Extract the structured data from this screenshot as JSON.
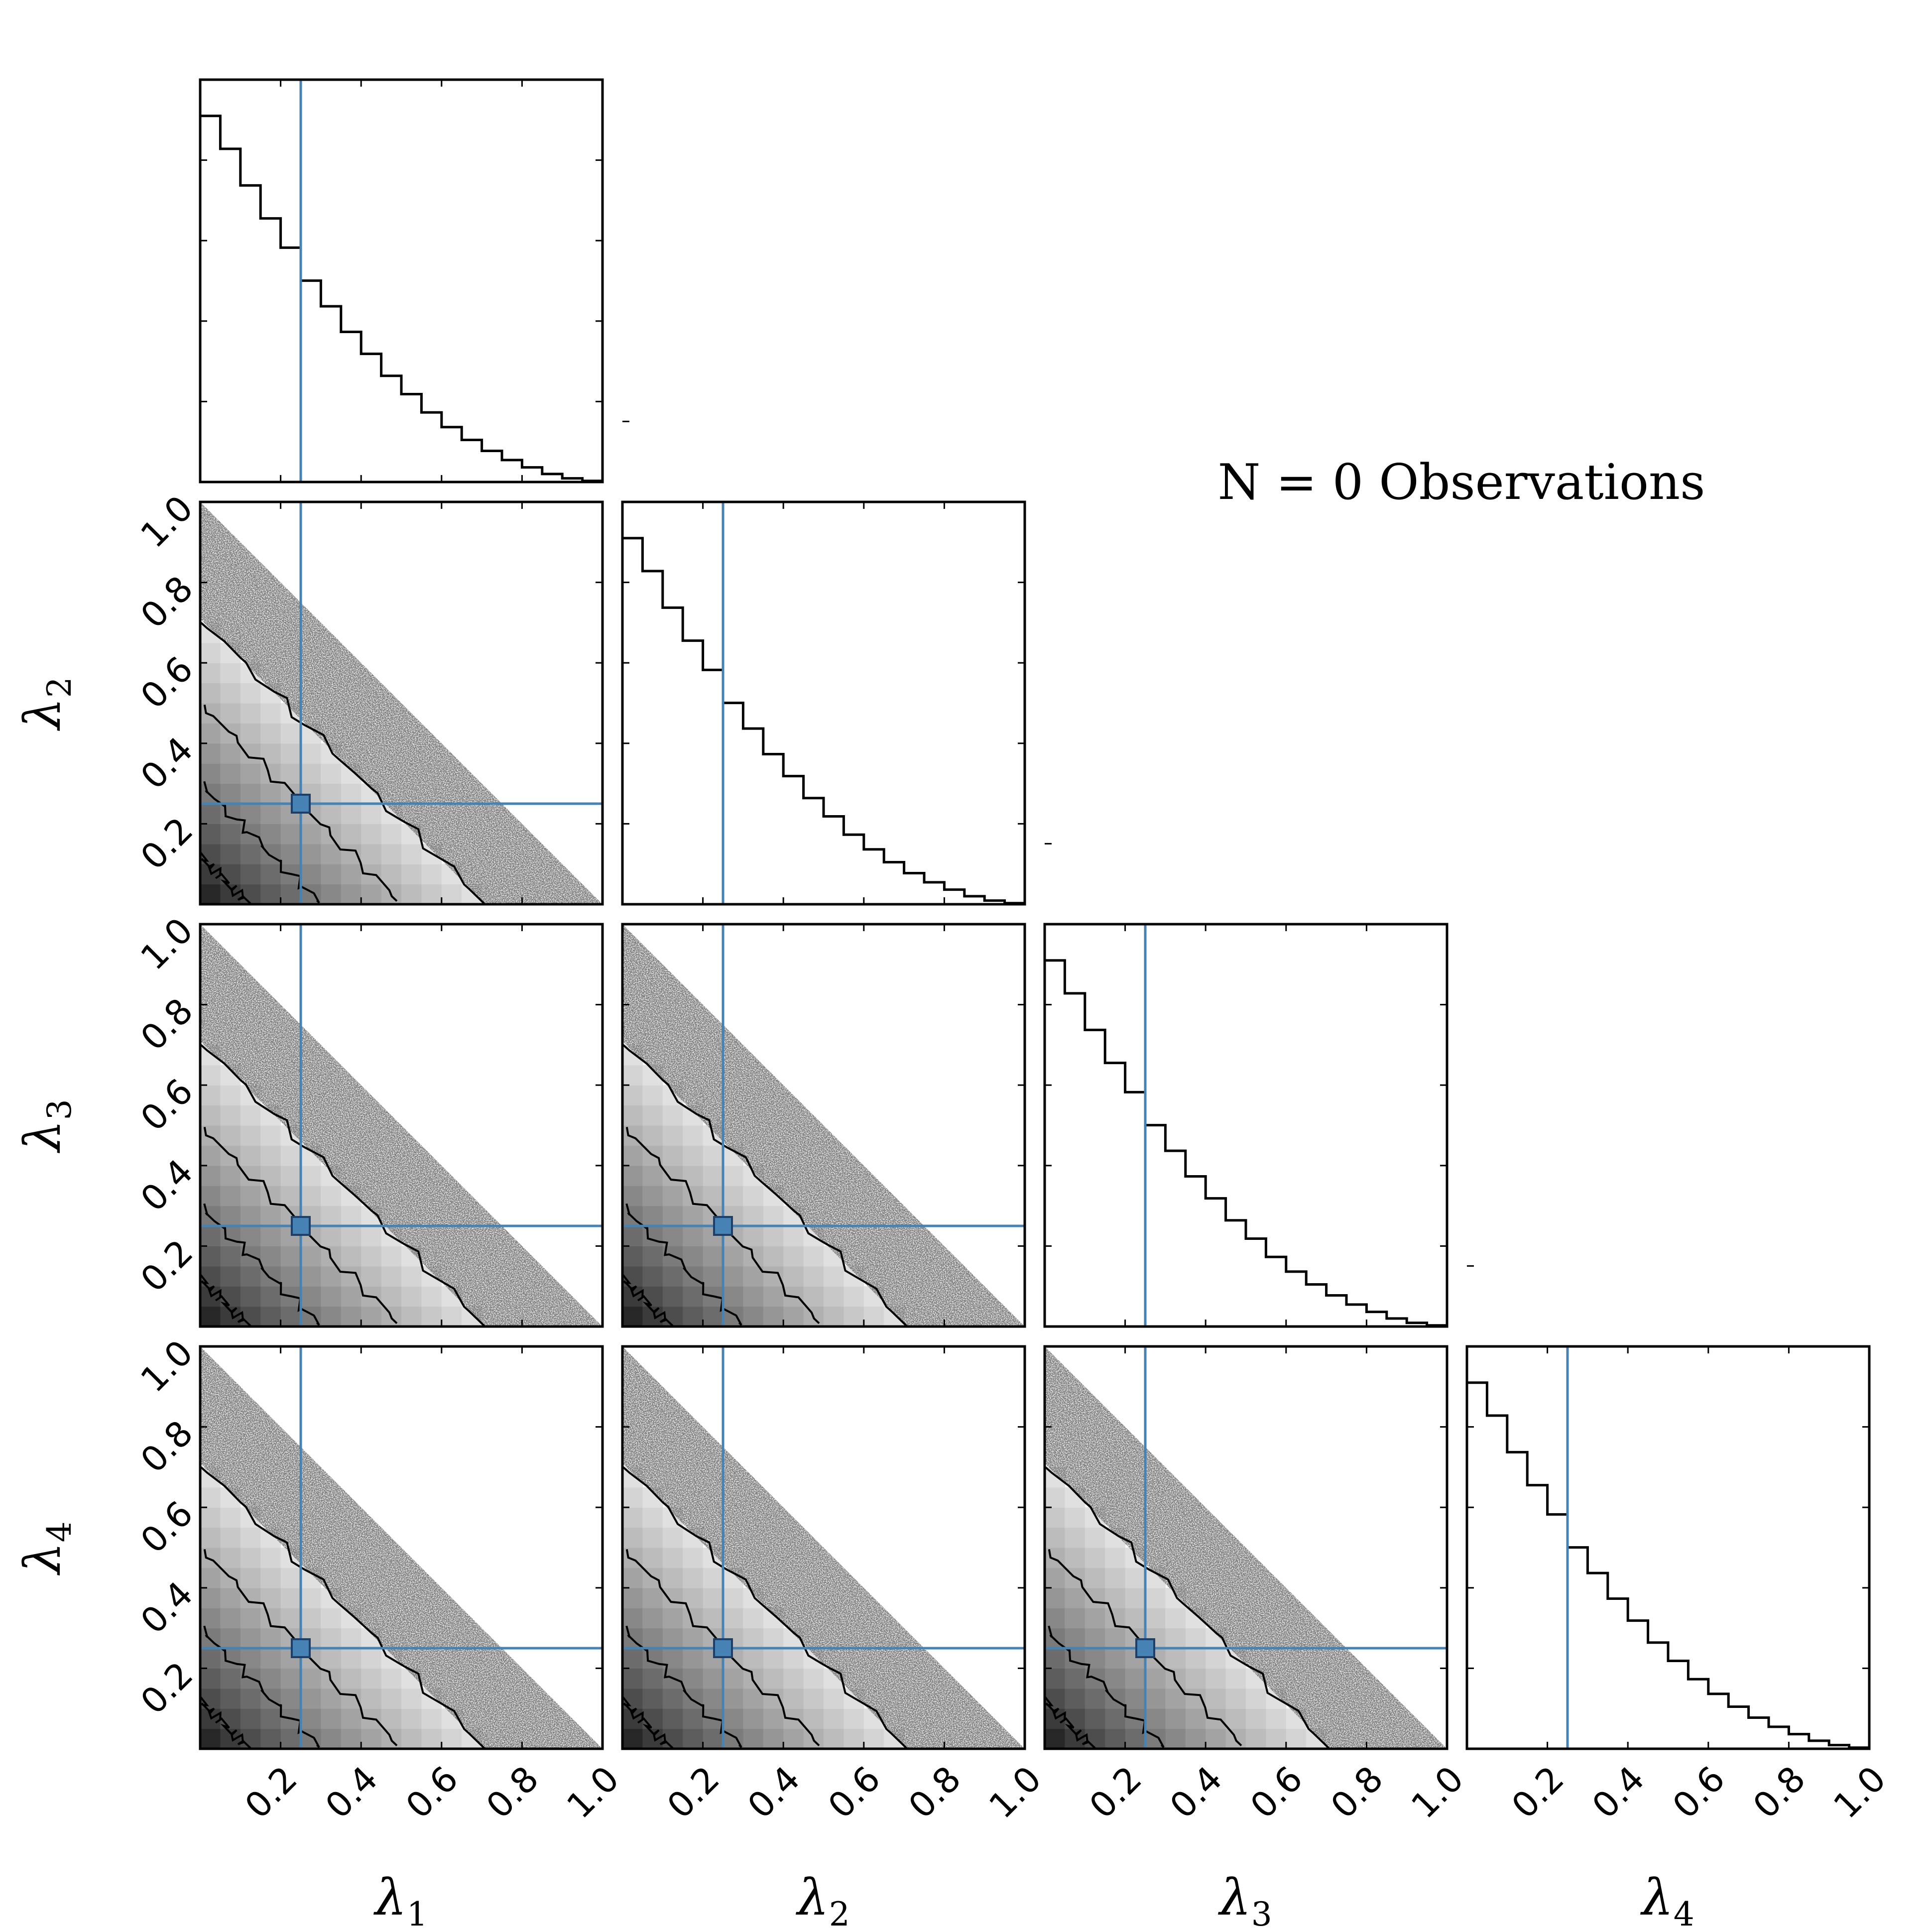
{
  "annotation": "N  =  0 Observations",
  "colors": {
    "truth": "#4682b4",
    "truth_marker_edge": "#1f3f66",
    "histogram": "#000000",
    "contour": "#000000",
    "frame": "#000000",
    "density_dark": "#000000",
    "density_light": "#ffffff"
  },
  "chart_data": {
    "type": "corner",
    "parameters": [
      {
        "symbol": "λ",
        "subscript": "1"
      },
      {
        "symbol": "λ",
        "subscript": "2"
      },
      {
        "symbol": "λ",
        "subscript": "3"
      },
      {
        "symbol": "λ",
        "subscript": "4"
      }
    ],
    "axis_range": [
      0,
      1
    ],
    "x_tick_labels": [
      "0.2",
      "0.4",
      "0.6",
      "0.8",
      "1.0"
    ],
    "x_tick_values": [
      0.2,
      0.4,
      0.6,
      0.8,
      1.0
    ],
    "y_tick_labels": [
      "0.2",
      "0.4",
      "0.6",
      "0.8",
      "1.0"
    ],
    "y_tick_values": [
      0.2,
      0.4,
      0.6,
      0.8,
      1.0
    ],
    "truth_values": [
      0.25,
      0.25,
      0.25,
      0.25
    ],
    "histogram": {
      "bins": 20,
      "bin_range": [
        0,
        1
      ],
      "counts": [
        1.0,
        0.91,
        0.81,
        0.72,
        0.64,
        0.55,
        0.48,
        0.41,
        0.35,
        0.29,
        0.24,
        0.19,
        0.15,
        0.115,
        0.085,
        0.06,
        0.04,
        0.022,
        0.01,
        0.003
      ]
    },
    "joint_density": {
      "grid_bins": 20,
      "support": "x + y <= 1",
      "contour_levels": [
        0.12,
        0.3,
        0.5,
        0.71
      ],
      "scatter_band": [
        0.71,
        1.0
      ]
    },
    "grid": false,
    "legend": "none"
  }
}
